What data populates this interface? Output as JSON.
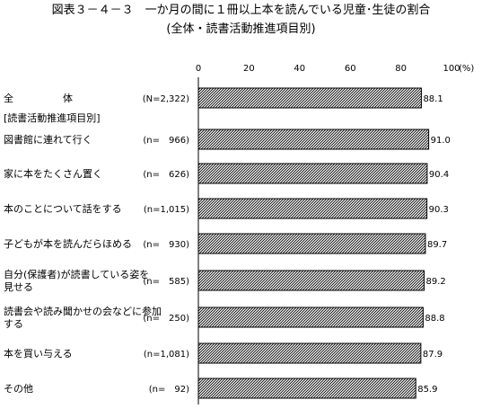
{
  "title": "図表３－４－３　一か月の間に１冊以上本を読んでいる児童･生徒の割合",
  "subtitle": "(全体・読書活動推進項目別)",
  "chart_data": {
    "type": "bar",
    "orientation": "horizontal",
    "axis_unit": "(%)",
    "xlim": [
      0,
      100
    ],
    "ticks": [
      0,
      20,
      40,
      60,
      80,
      100
    ],
    "grid": false,
    "section_header": "[読書活動推進項目別]",
    "bar_pattern": "diagonal-hatch",
    "categories": [
      {
        "label": "全　　　　　体",
        "n": "(N=2,322)",
        "value": 88.1
      },
      {
        "label": "図書館に連れて行く",
        "n": "(n=　966)",
        "value": 91.0
      },
      {
        "label": "家に本をたくさん置く",
        "n": "(n=　626)",
        "value": 90.4
      },
      {
        "label": "本のことについて話をする",
        "n": "(n=1,015)",
        "value": 90.3
      },
      {
        "label": "子どもが本を読んだらほめる",
        "n": "(n=　930)",
        "value": 89.7
      },
      {
        "label": "自分(保護者)が読書している姿を見せる",
        "n": "(n=　585)",
        "value": 89.2
      },
      {
        "label": "読書会や読み聞かせの会などに参加する",
        "n": "(n=　250)",
        "value": 88.8
      },
      {
        "label": "本を買い与える",
        "n": "(n=1,081)",
        "value": 87.9
      },
      {
        "label": "その他",
        "n": "(n=　92)",
        "value": 85.9
      }
    ]
  }
}
